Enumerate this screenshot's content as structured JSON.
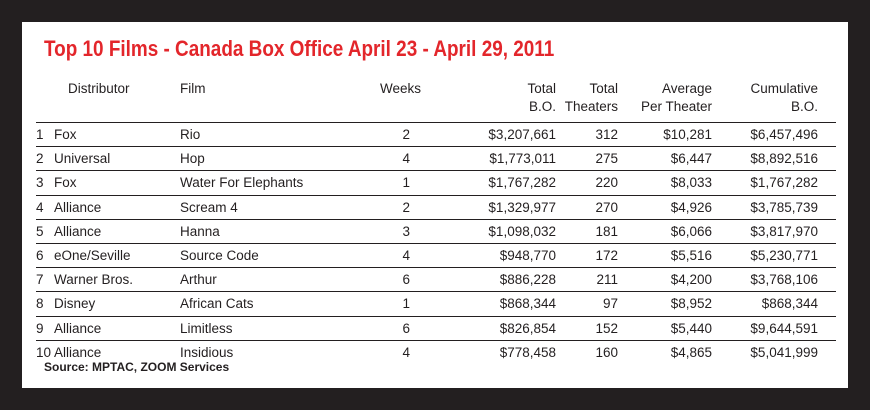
{
  "title": "Top 10 Films - Canada Box Office April 23 - April 29, 2011",
  "headers": {
    "distributor": "Distributor",
    "film": "Film",
    "weeks": "Weeks",
    "total_bo_1": "Total",
    "total_bo_2": "B.O.",
    "total_theaters_1": "Total",
    "total_theaters_2": "Theaters",
    "avg_1": "Average",
    "avg_2": "Per Theater",
    "cum_1": "Cumulative",
    "cum_2": "B.O."
  },
  "rows": [
    {
      "rank": "1",
      "distributor": "Fox",
      "film": "Rio",
      "weeks": "2",
      "total_bo": "$3,207,661",
      "theaters": "312",
      "avg": "$10,281",
      "cumulative": "$6,457,496"
    },
    {
      "rank": "2",
      "distributor": "Universal",
      "film": "Hop",
      "weeks": "4",
      "total_bo": "$1,773,011",
      "theaters": "275",
      "avg": "$6,447",
      "cumulative": "$8,892,516"
    },
    {
      "rank": "3",
      "distributor": "Fox",
      "film": "Water For Elephants",
      "weeks": "1",
      "total_bo": "$1,767,282",
      "theaters": "220",
      "avg": "$8,033",
      "cumulative": "$1,767,282"
    },
    {
      "rank": "4",
      "distributor": "Alliance",
      "film": "Scream 4",
      "weeks": "2",
      "total_bo": "$1,329,977",
      "theaters": "270",
      "avg": "$4,926",
      "cumulative": "$3,785,739"
    },
    {
      "rank": "5",
      "distributor": "Alliance",
      "film": "Hanna",
      "weeks": "3",
      "total_bo": "$1,098,032",
      "theaters": "181",
      "avg": "$6,066",
      "cumulative": "$3,817,970"
    },
    {
      "rank": "6",
      "distributor": "eOne/Seville",
      "film": "Source Code",
      "weeks": "4",
      "total_bo": "$948,770",
      "theaters": "172",
      "avg": "$5,516",
      "cumulative": "$5,230,771"
    },
    {
      "rank": "7",
      "distributor": "Warner Bros.",
      "film": "Arthur",
      "weeks": "6",
      "total_bo": "$886,228",
      "theaters": "211",
      "avg": "$4,200",
      "cumulative": "$3,768,106"
    },
    {
      "rank": "8",
      "distributor": "Disney",
      "film": "African Cats",
      "weeks": "1",
      "total_bo": "$868,344",
      "theaters": "97",
      "avg": "$8,952",
      "cumulative": "$868,344"
    },
    {
      "rank": "9",
      "distributor": "Alliance",
      "film": "Limitless",
      "weeks": "6",
      "total_bo": "$826,854",
      "theaters": "152",
      "avg": "$5,440",
      "cumulative": "$9,644,591"
    },
    {
      "rank": "10",
      "distributor": "Alliance",
      "film": "Insidious",
      "weeks": "4",
      "total_bo": "$778,458",
      "theaters": "160",
      "avg": "$4,865",
      "cumulative": "$5,041,999"
    }
  ],
  "source": "Source: MPTAC, ZOOM Services",
  "colors": {
    "title": "#e3262b",
    "frame": "#231f20",
    "background": "#ffffff"
  }
}
